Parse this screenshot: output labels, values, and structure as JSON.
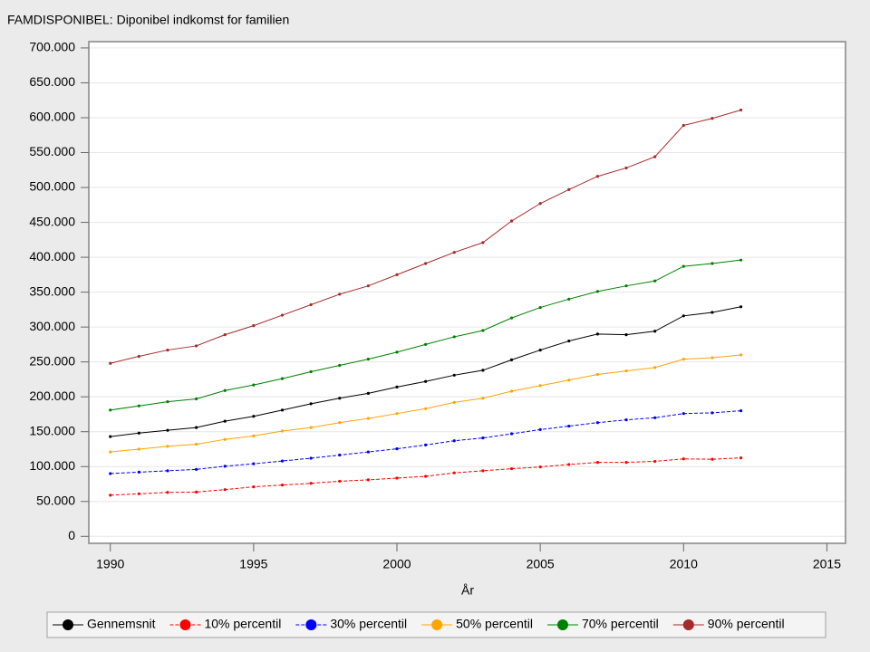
{
  "chart_data": {
    "type": "line",
    "title": "FAMDISPONIBEL: Diponibel indkomst for familien",
    "x_label": "År",
    "x": [
      1990,
      1991,
      1992,
      1993,
      1994,
      1995,
      1996,
      1997,
      1998,
      1999,
      2000,
      2001,
      2002,
      2003,
      2004,
      2005,
      2006,
      2007,
      2008,
      2009,
      2010,
      2011,
      2012
    ],
    "xlim": [
      1989.25,
      2015.65
    ],
    "xticks": [
      1990,
      1995,
      2000,
      2005,
      2010,
      2015
    ],
    "ylim": [
      -10000,
      709000
    ],
    "yticks": [
      0,
      {
        "value": 50000,
        "label": "50.000"
      },
      {
        "value": 100000,
        "label": "100.000"
      },
      {
        "value": 150000,
        "label": "150.000"
      },
      {
        "value": 200000,
        "label": "200.000"
      },
      {
        "value": 250000,
        "label": "250.000"
      },
      {
        "value": 300000,
        "label": "300.000"
      },
      {
        "value": 350000,
        "label": "350.000"
      },
      {
        "value": 400000,
        "label": "400.000"
      },
      {
        "value": 450000,
        "label": "450.000"
      },
      {
        "value": 500000,
        "label": "500.000"
      },
      {
        "value": 550000,
        "label": "550.000"
      },
      {
        "value": 600000,
        "label": "600.000"
      },
      {
        "value": 650000,
        "label": "650.000"
      },
      {
        "value": 700000,
        "label": "700.000"
      }
    ],
    "grid": true,
    "legend": "bottom",
    "series": [
      {
        "name": "Gennemsnit",
        "color": "#000000",
        "dashed": false,
        "values": [
          143000,
          148000,
          152000,
          156000,
          165000,
          172000,
          181000,
          190000,
          198000,
          205000,
          214000,
          222000,
          231000,
          238000,
          253000,
          267000,
          280000,
          290000,
          289000,
          294000,
          316000,
          321000,
          329000
        ]
      },
      {
        "name": "10% percentil",
        "color": "#ff0000",
        "dashed": true,
        "values": [
          59000,
          61000,
          63000,
          63500,
          67000,
          71000,
          73500,
          76000,
          79000,
          81000,
          83500,
          86000,
          91000,
          94000,
          97000,
          99500,
          103000,
          106000,
          106000,
          107500,
          111000,
          110500,
          112500
        ]
      },
      {
        "name": "30% percentil",
        "color": "#0000ff",
        "dashed": true,
        "values": [
          90000,
          92000,
          94000,
          96000,
          100500,
          104000,
          108000,
          112000,
          116500,
          121000,
          125500,
          131000,
          137000,
          141000,
          147000,
          153000,
          158000,
          163000,
          167000,
          170000,
          176000,
          177000,
          180000
        ]
      },
      {
        "name": "50% percentil",
        "color": "#ffa500",
        "dashed": false,
        "values": [
          121000,
          125000,
          129000,
          132000,
          139000,
          144000,
          151000,
          156000,
          163000,
          169000,
          176000,
          183000,
          192000,
          198000,
          208000,
          216000,
          224000,
          232000,
          237000,
          242000,
          254000,
          256000,
          260000
        ]
      },
      {
        "name": "70% percentil",
        "color": "#008000",
        "dashed": false,
        "values": [
          181000,
          187000,
          193000,
          197000,
          209000,
          217000,
          226000,
          236000,
          245000,
          254000,
          264000,
          275000,
          286000,
          295000,
          313000,
          328000,
          340000,
          351000,
          359000,
          366000,
          387000,
          391000,
          396000
        ]
      },
      {
        "name": "90% percentil",
        "color": "#a52a2a",
        "dashed": false,
        "values": [
          248000,
          258000,
          267000,
          273000,
          289000,
          302000,
          317000,
          332000,
          347000,
          359000,
          375000,
          391000,
          407000,
          421000,
          452000,
          477000,
          497000,
          516000,
          528000,
          544000,
          589000,
          599000,
          611000
        ]
      }
    ]
  }
}
